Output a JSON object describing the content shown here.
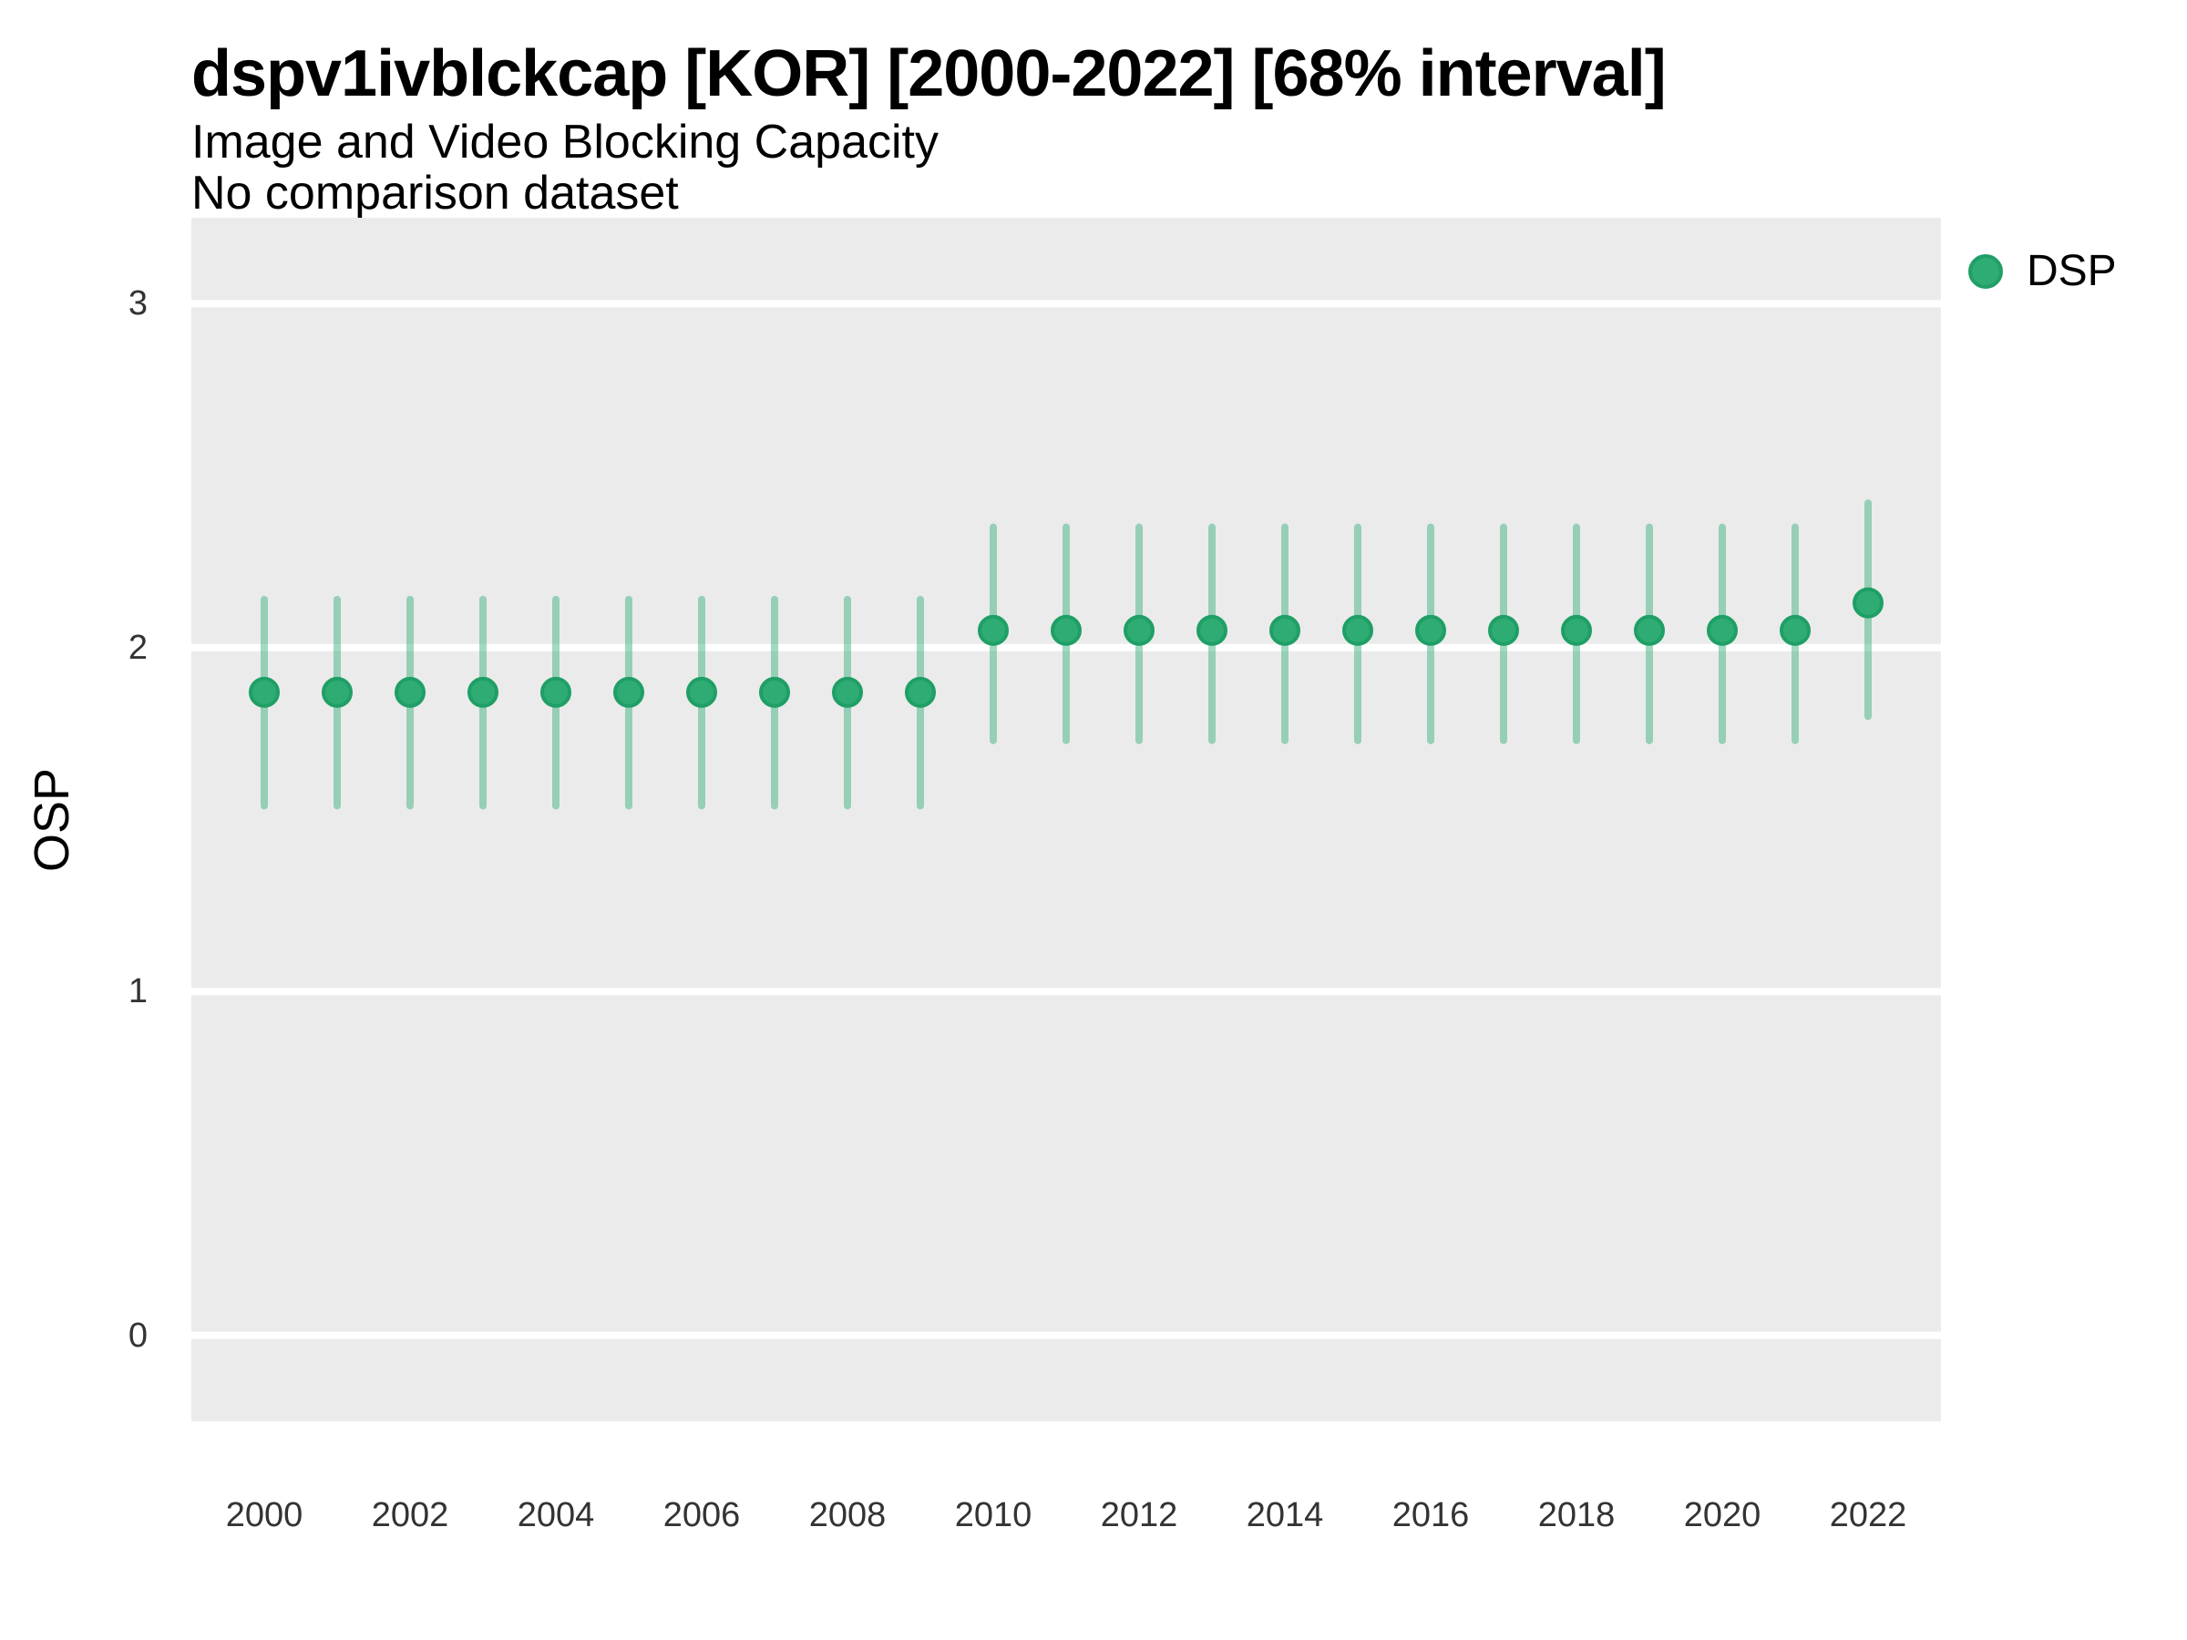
{
  "header": {
    "title": "dspv1ivblckcap [KOR] [2000-2022] [68% interval]",
    "subtitle": "Image and Video Blocking Capacity",
    "subtitle2": "No comparison dataset"
  },
  "legend": {
    "position": "right-top",
    "items": [
      {
        "label": "DSP",
        "color": "#2EAC74",
        "border_color": "#1F9F66"
      }
    ]
  },
  "colors": {
    "panel_background": "#EBEBEB",
    "gridline": "#FFFFFF",
    "point_fill": "#2EAC74",
    "point_stroke": "#1F9F66",
    "interval_bar": "rgba(46,172,116,0.45)",
    "tick_text": "#333333",
    "title_text": "#000000"
  },
  "chart_data": {
    "type": "pointrange",
    "title": "dspv1ivblckcap [KOR] [2000-2022] [68% interval]",
    "subtitle": "Image and Video Blocking Capacity",
    "note": "No comparison dataset",
    "interval_level": "68%",
    "xlabel": "",
    "ylabel": "OSP",
    "xlim": [
      1999,
      2023
    ],
    "ylim": [
      -0.25,
      3.25
    ],
    "x_ticks": [
      2000,
      2002,
      2004,
      2006,
      2008,
      2010,
      2012,
      2014,
      2016,
      2018,
      2020,
      2022
    ],
    "y_ticks": [
      0,
      1,
      2,
      3
    ],
    "grid": "horizontal-major-only",
    "legend_position": "right",
    "x": [
      2000,
      2001,
      2002,
      2003,
      2004,
      2005,
      2006,
      2007,
      2008,
      2009,
      2010,
      2011,
      2012,
      2013,
      2014,
      2015,
      2016,
      2017,
      2018,
      2019,
      2020,
      2021,
      2022
    ],
    "series": [
      {
        "name": "DSP",
        "values": [
          1.87,
          1.87,
          1.87,
          1.87,
          1.87,
          1.87,
          1.87,
          1.87,
          1.87,
          1.87,
          2.05,
          2.05,
          2.05,
          2.05,
          2.05,
          2.05,
          2.05,
          2.05,
          2.05,
          2.05,
          2.05,
          2.05,
          2.13
        ],
        "lower": [
          1.54,
          1.54,
          1.54,
          1.54,
          1.54,
          1.54,
          1.54,
          1.54,
          1.54,
          1.54,
          1.73,
          1.73,
          1.73,
          1.73,
          1.73,
          1.73,
          1.73,
          1.73,
          1.73,
          1.73,
          1.73,
          1.73,
          1.8
        ],
        "upper": [
          2.14,
          2.14,
          2.14,
          2.14,
          2.14,
          2.14,
          2.14,
          2.14,
          2.14,
          2.14,
          2.35,
          2.35,
          2.35,
          2.35,
          2.35,
          2.35,
          2.35,
          2.35,
          2.35,
          2.35,
          2.35,
          2.35,
          2.42
        ]
      }
    ]
  }
}
